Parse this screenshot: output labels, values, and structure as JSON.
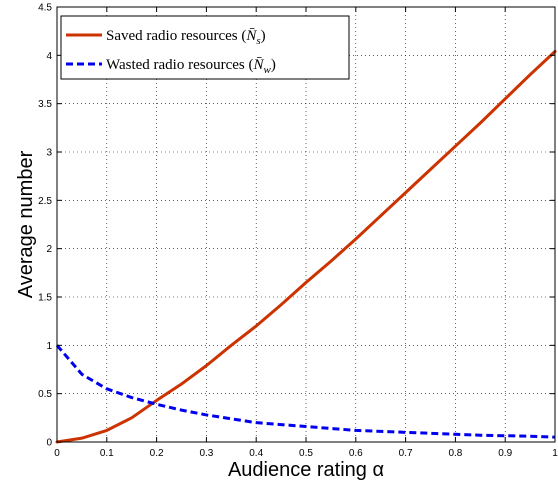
{
  "chart_data": {
    "type": "line",
    "xlabel": "Audience rating α",
    "ylabel": "Average number",
    "xlim": [
      0,
      1
    ],
    "ylim": [
      0,
      4.5
    ],
    "xticks": [
      0,
      0.1,
      0.2,
      0.3,
      0.4,
      0.5,
      0.6,
      0.7,
      0.8,
      0.9,
      1
    ],
    "yticks": [
      0,
      0.5,
      1,
      1.5,
      2,
      2.5,
      3,
      3.5,
      4,
      4.5
    ],
    "xtick_labels": [
      "0",
      "0.1",
      "0.2",
      "0.3",
      "0.4",
      "0.5",
      "0.6",
      "0.7",
      "0.8",
      "0.9",
      "1"
    ],
    "ytick_labels": [
      "0",
      "0.5",
      "1",
      "1.5",
      "2",
      "2.5",
      "3",
      "3.5",
      "4",
      "4.5"
    ],
    "grid": true,
    "legend_position": "top-left",
    "x": [
      0,
      0.05,
      0.1,
      0.15,
      0.2,
      0.25,
      0.3,
      0.35,
      0.4,
      0.45,
      0.5,
      0.55,
      0.6,
      0.65,
      0.7,
      0.75,
      0.8,
      0.85,
      0.9,
      0.95,
      1
    ],
    "series": [
      {
        "name": "Saved radio resources (N̄s)",
        "label_main": "Saved radio resources (",
        "label_sym": "N̄",
        "label_sub": "s",
        "label_close": ")",
        "color": "#cc3300",
        "style": "solid",
        "values": [
          0,
          0.04,
          0.12,
          0.25,
          0.43,
          0.6,
          0.79,
          1.0,
          1.2,
          1.42,
          1.65,
          1.87,
          2.1,
          2.34,
          2.58,
          2.82,
          3.06,
          3.3,
          3.55,
          3.8,
          4.04
        ]
      },
      {
        "name": "Wasted radio resources (N̄w)",
        "label_main": "Wasted radio resources (",
        "label_sym": "N̄",
        "label_sub": "w",
        "label_close": ")",
        "color": "#0000ee",
        "style": "dashed",
        "values": [
          1.0,
          0.7,
          0.55,
          0.46,
          0.39,
          0.33,
          0.28,
          0.24,
          0.2,
          0.18,
          0.16,
          0.14,
          0.12,
          0.11,
          0.1,
          0.09,
          0.08,
          0.07,
          0.065,
          0.06,
          0.05
        ]
      }
    ]
  }
}
